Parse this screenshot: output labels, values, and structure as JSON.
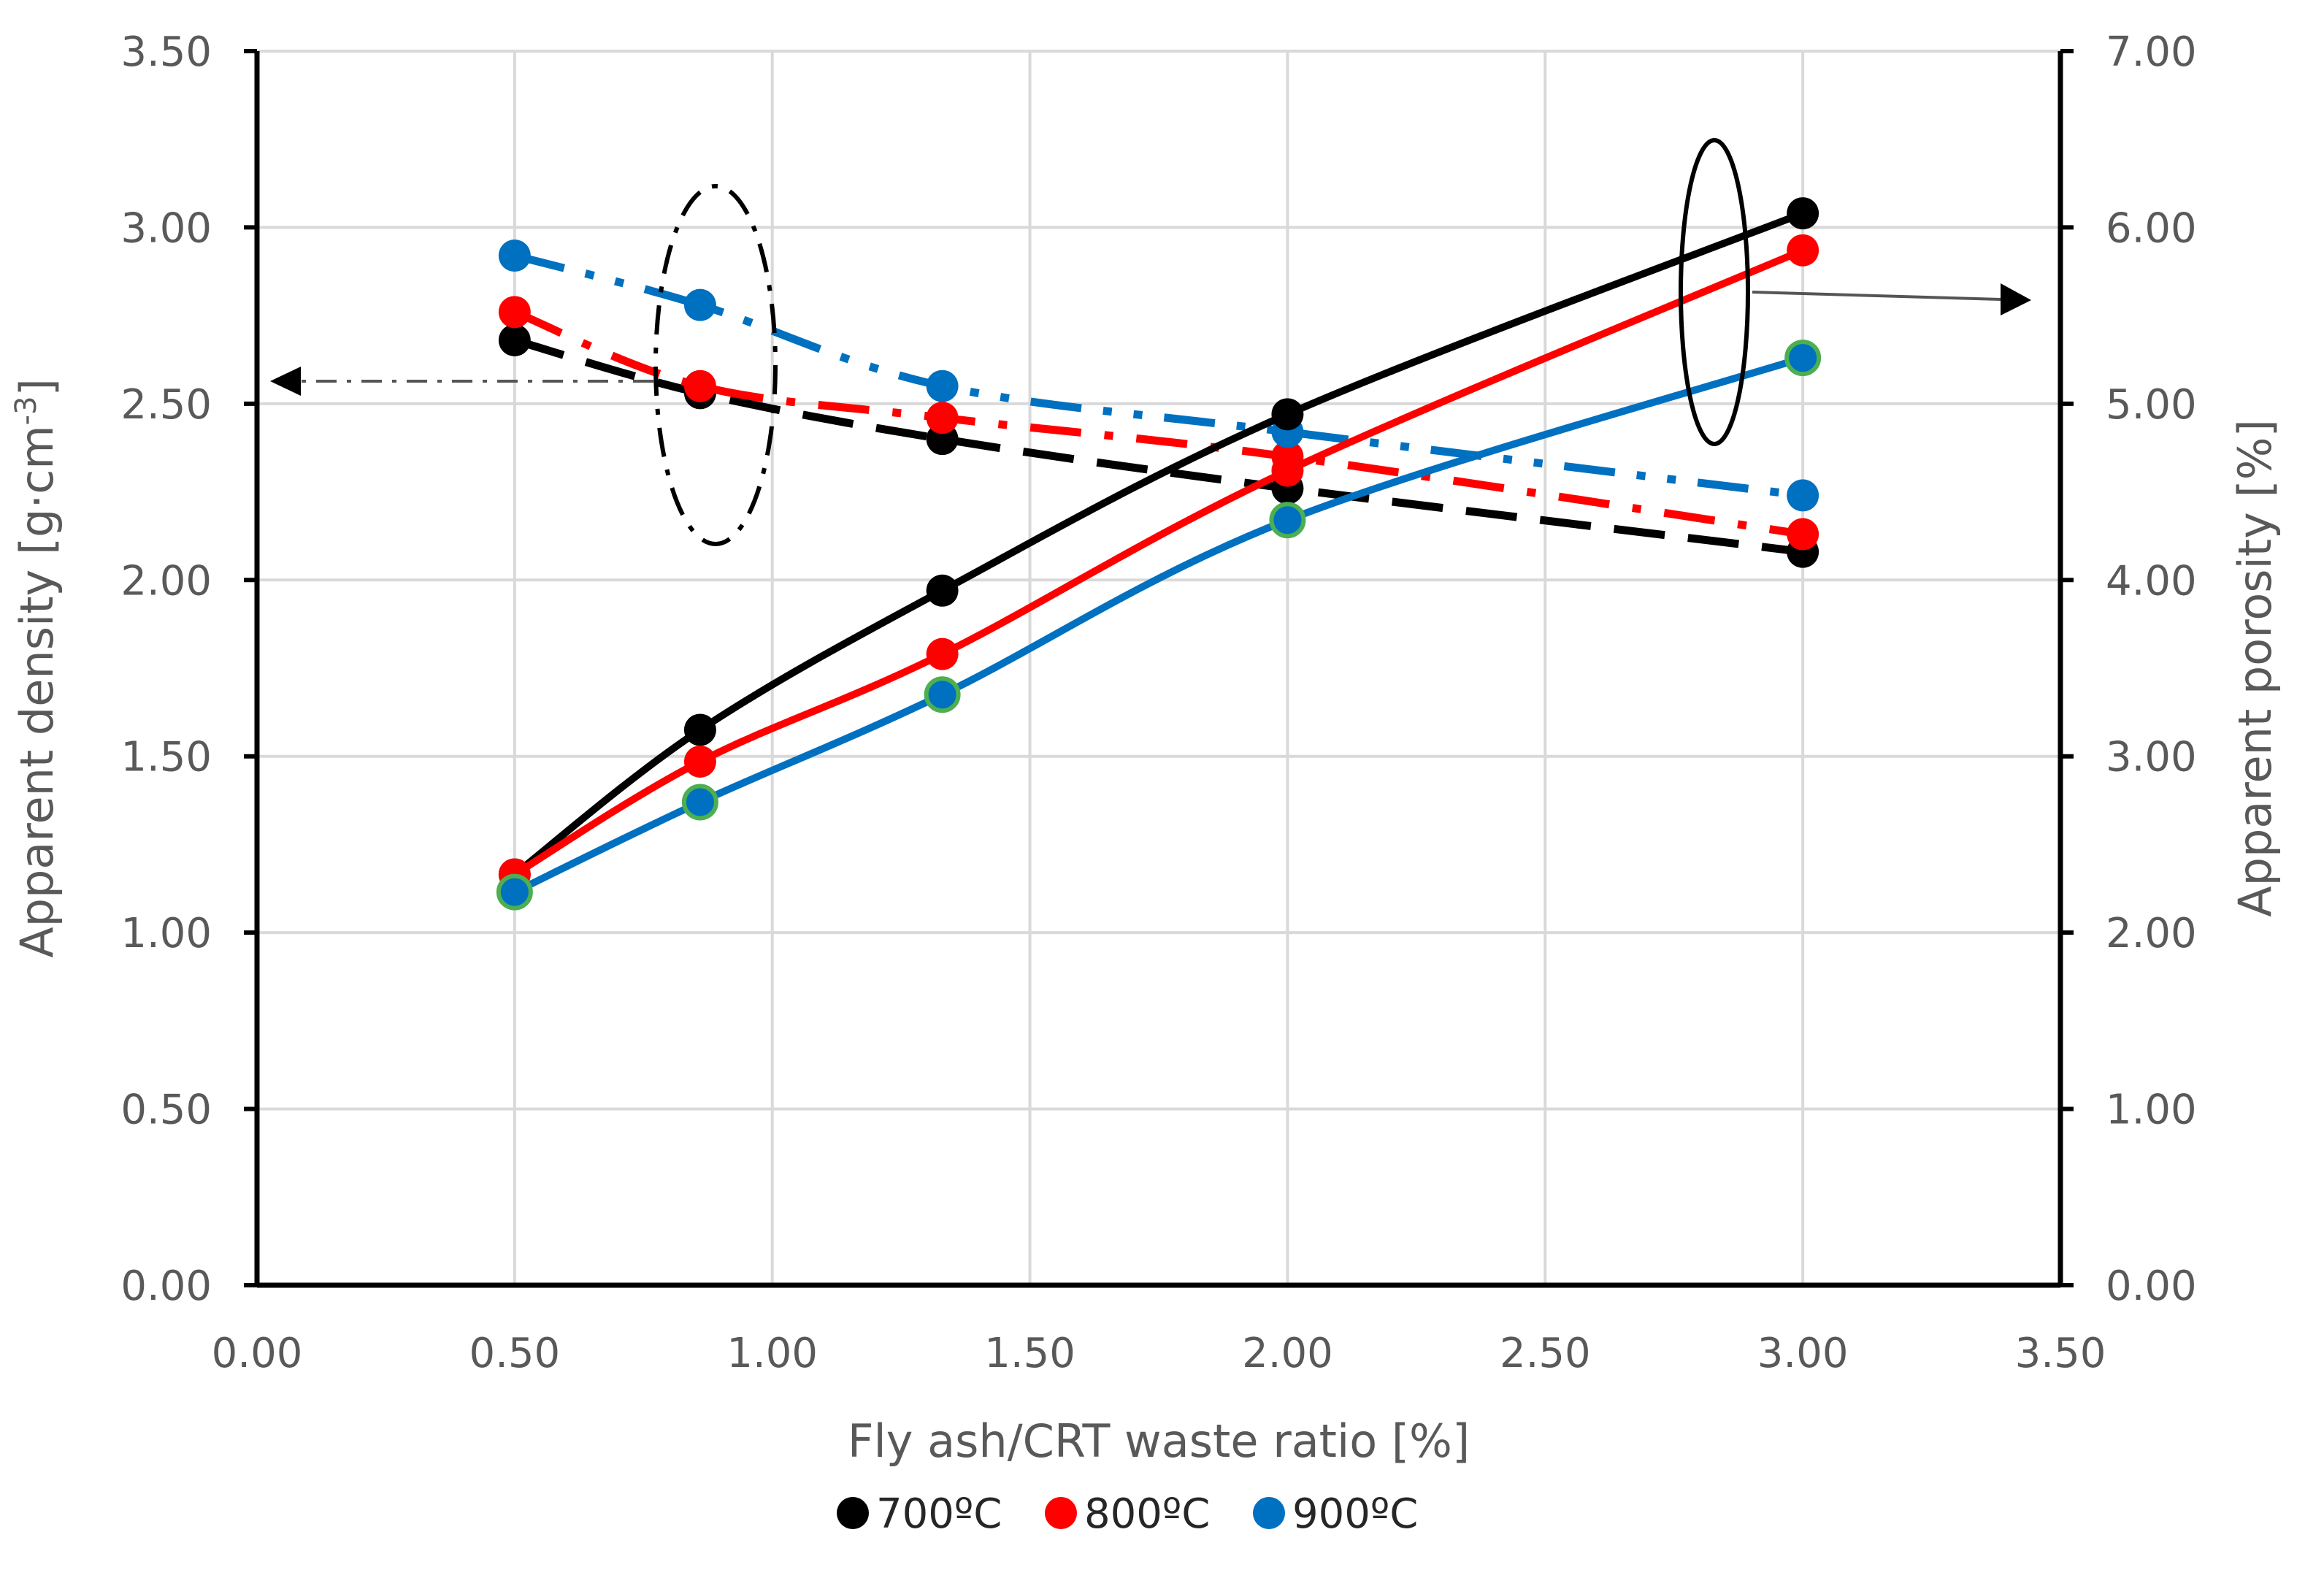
{
  "chart_data": {
    "type": "line",
    "title": "",
    "xlabel": "Fly ash/CRT waste ratio [%]",
    "ylabel_left": "Apparent density [g·cm⁻³]",
    "ylabel_left_parts": {
      "main": "Apparent density [g·cm",
      "sup": "-3",
      "close": "]"
    },
    "ylabel_right": "Apparent porosity [%]",
    "xlim": [
      0,
      3.5
    ],
    "ylim_left": [
      0,
      3.5
    ],
    "ylim_right": [
      0,
      7
    ],
    "grid": true,
    "x_ticks": [
      "0.00",
      "0.50",
      "1.00",
      "1.50",
      "2.00",
      "2.50",
      "3.00",
      "3.50"
    ],
    "y_left_ticks": [
      "0.00",
      "0.50",
      "1.00",
      "1.50",
      "2.00",
      "2.50",
      "3.00",
      "3.50"
    ],
    "y_right_ticks": [
      "0.00",
      "1.00",
      "2.00",
      "3.00",
      "4.00",
      "5.00",
      "6.00",
      "7.00"
    ],
    "x": [
      0.5,
      0.86,
      1.33,
      2.0,
      3.0
    ],
    "series": [
      {
        "name": "700ºC",
        "color": "#000000",
        "axis": "left",
        "quantity": "density",
        "style": "dashed",
        "values": [
          2.68,
          2.53,
          2.4,
          2.26,
          2.08
        ]
      },
      {
        "name": "800ºC",
        "color": "#ff0000",
        "axis": "left",
        "quantity": "density",
        "style": "dash-dot",
        "values": [
          2.76,
          2.55,
          2.46,
          2.35,
          2.13
        ]
      },
      {
        "name": "900ºC",
        "color": "#0070c0",
        "axis": "left",
        "quantity": "density",
        "style": "dash-dot-dot",
        "values": [
          2.92,
          2.78,
          2.55,
          2.42,
          2.24
        ]
      },
      {
        "name": "700ºC",
        "color": "#000000",
        "axis": "right",
        "quantity": "porosity",
        "style": "solid",
        "values": [
          2.33,
          3.15,
          3.94,
          4.94,
          6.08
        ]
      },
      {
        "name": "800ºC",
        "color": "#ff0000",
        "axis": "right",
        "quantity": "porosity",
        "style": "solid",
        "values": [
          2.33,
          2.97,
          3.58,
          4.62,
          5.87
        ]
      },
      {
        "name": "900ºC",
        "color": "#0070c0",
        "axis": "right",
        "quantity": "porosity",
        "style": "solid",
        "values": [
          2.23,
          2.74,
          3.35,
          4.34,
          5.26
        ]
      }
    ],
    "legend": {
      "placement": "bottom-center",
      "entries": [
        {
          "label": "700ºC",
          "color": "#000000"
        },
        {
          "label": "800ºC",
          "color": "#ff0000"
        },
        {
          "label": "900ºC",
          "color": "#0070c0"
        }
      ]
    },
    "annotations": [
      {
        "type": "ellipse",
        "target": "density series",
        "arrow": "points to left axis"
      },
      {
        "type": "ellipse",
        "target": "porosity series",
        "arrow": "points to right axis"
      }
    ]
  }
}
